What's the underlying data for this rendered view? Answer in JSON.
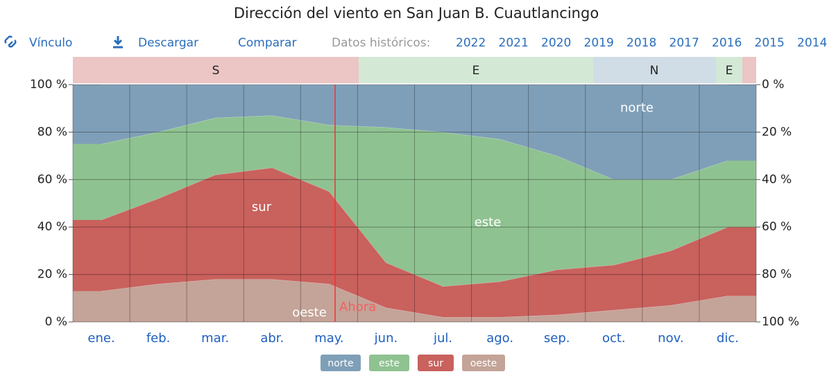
{
  "chart_data": {
    "type": "stacked_area",
    "title": "Dirección del viento en San Juan B. Cuautlancingo",
    "toolbar": {
      "link": "Vínculo",
      "download": "Descargar",
      "compare": "Comparar",
      "history_label": "Datos históricos:",
      "years": [
        "2022",
        "2021",
        "2020",
        "2019",
        "2018",
        "2017",
        "2016",
        "2015",
        "2014"
      ]
    },
    "season_labels": [
      "S",
      "E",
      "N",
      "E"
    ],
    "annotation": "Ahora",
    "categories": [
      "ene.",
      "feb.",
      "mar.",
      "abr.",
      "may.",
      "jun.",
      "jul.",
      "ago.",
      "sep.",
      "oct.",
      "nov.",
      "dic."
    ],
    "series": [
      {
        "name": "oeste",
        "color": "#c4a398",
        "values": [
          13,
          16,
          18,
          18,
          16,
          6,
          2,
          2,
          3,
          5,
          7,
          11
        ]
      },
      {
        "name": "sur",
        "color": "#c9615d",
        "values": [
          30,
          36,
          44,
          47,
          39,
          19,
          13,
          15,
          19,
          19,
          23,
          29
        ]
      },
      {
        "name": "este",
        "color": "#8fc291",
        "values": [
          32,
          28,
          24,
          22,
          28,
          57,
          65,
          60,
          48,
          36,
          30,
          28
        ]
      },
      {
        "name": "norte",
        "color": "#7f9fb8",
        "values": [
          25,
          20,
          14,
          13,
          17,
          18,
          20,
          23,
          30,
          40,
          40,
          32
        ]
      }
    ],
    "ylim": [
      0,
      100
    ],
    "yticks": [
      {
        "value": 0,
        "label": "0 %"
      },
      {
        "value": 20,
        "label": "20 %"
      },
      {
        "value": 40,
        "label": "40 %"
      },
      {
        "value": 60,
        "label": "60 %"
      },
      {
        "value": 80,
        "label": "80 %"
      },
      {
        "value": 100,
        "label": "100 %"
      }
    ],
    "y2lim": [
      100,
      0
    ],
    "y2ticks": [
      {
        "value": 0,
        "label": "0 %"
      },
      {
        "value": 20,
        "label": "20 %"
      },
      {
        "value": 40,
        "label": "40 %"
      },
      {
        "value": 60,
        "label": "60 %"
      },
      {
        "value": 80,
        "label": "80 %"
      },
      {
        "value": 100,
        "label": "100 %"
      }
    ],
    "grid": true
  }
}
